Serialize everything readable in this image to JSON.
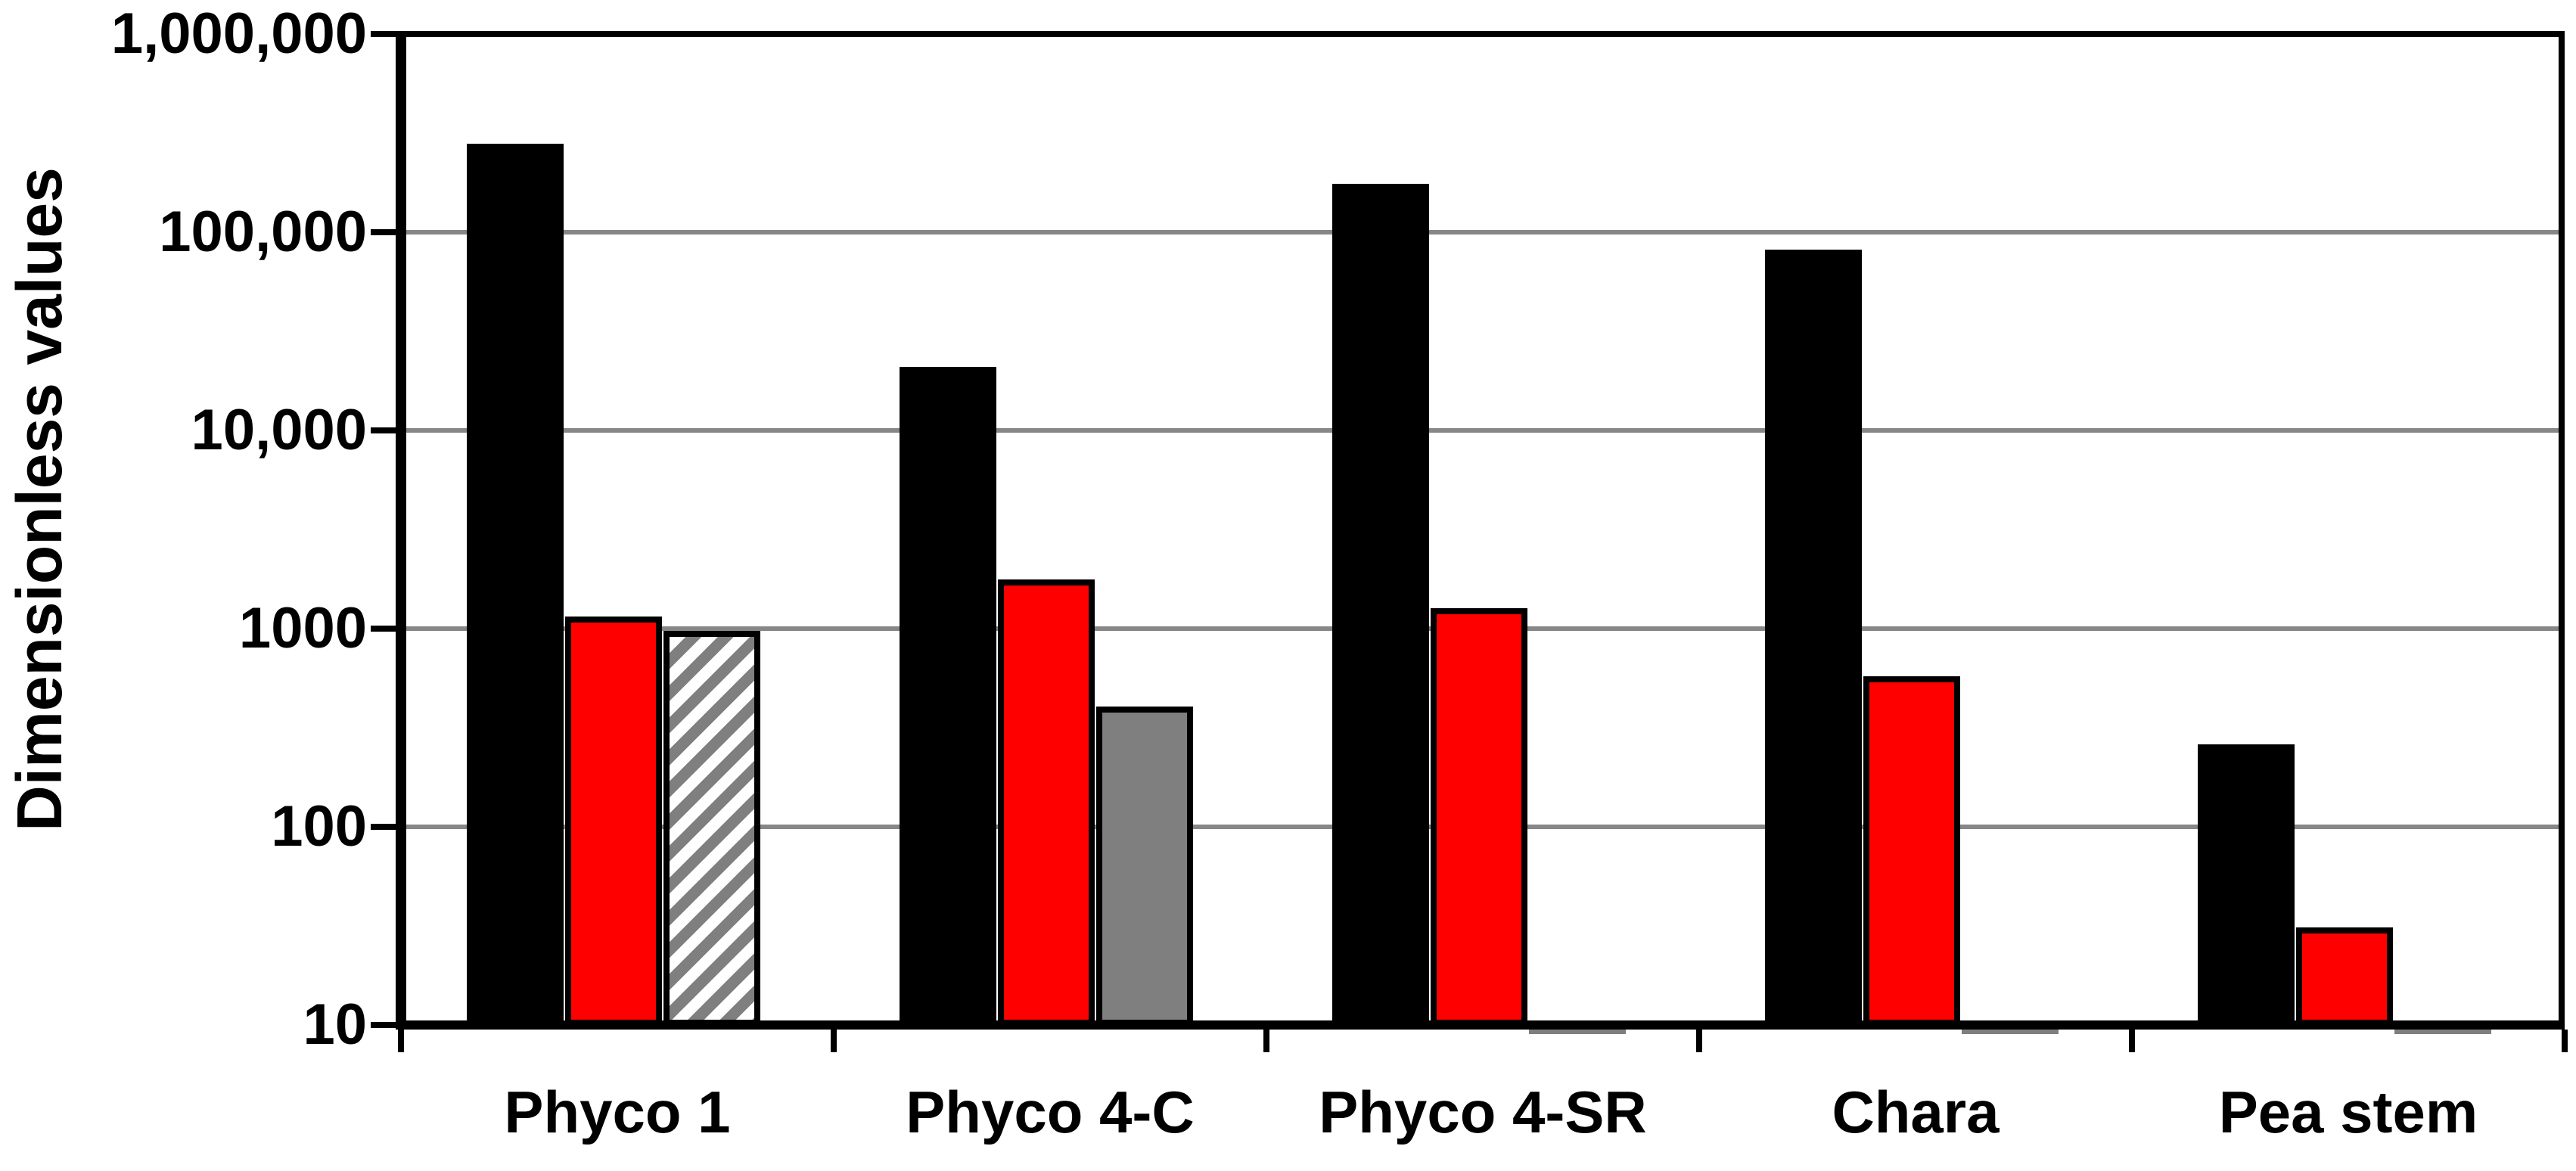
{
  "chart_data": {
    "type": "bar",
    "title": "",
    "xlabel": "",
    "ylabel": "Dimensionless values",
    "y_scale": "log10",
    "ylim": [
      10,
      1000000
    ],
    "grid": true,
    "legend": false,
    "y_ticks": [
      {
        "value": 1000000,
        "label": "1,000,000"
      },
      {
        "value": 100000,
        "label": "100,000"
      },
      {
        "value": 10000,
        "label": "10,000"
      },
      {
        "value": 1000,
        "label": "1000"
      },
      {
        "value": 100,
        "label": "100"
      },
      {
        "value": 10,
        "label": "10"
      }
    ],
    "categories": [
      "Phyco 1",
      "Phyco 4-C",
      "Phyco 4-SR",
      "Chara",
      "Pea stem"
    ],
    "series": [
      {
        "name": "series-1-black",
        "color": "#000000",
        "fills": [
          "black",
          "black",
          "black",
          "black",
          "black"
        ],
        "values": [
          280000,
          21000,
          175000,
          82000,
          260
        ]
      },
      {
        "name": "series-2-red",
        "color": "#ff0000",
        "fills": [
          "red",
          "red",
          "red",
          "red",
          "red"
        ],
        "values": [
          1150,
          1770,
          1270,
          575,
          31
        ]
      },
      {
        "name": "series-3-gray",
        "color": "#7f7f7f",
        "fills": [
          "hatched",
          "solidgray",
          "baseline",
          "baseline",
          "baseline"
        ],
        "values": [
          970,
          405,
          10,
          10,
          10
        ]
      }
    ],
    "colors": {
      "black_bar": "#000000",
      "red_bar": "#ff0000",
      "gray_bar": "#7f7f7f",
      "hatch_stripe": "#7f7f7f",
      "gridline": "#878787",
      "axis": "#000000",
      "background": "#ffffff"
    }
  }
}
